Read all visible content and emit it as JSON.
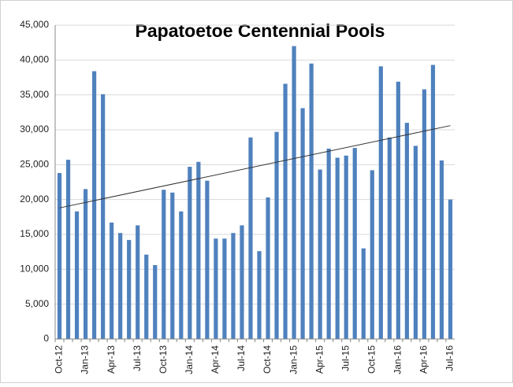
{
  "chart_data": {
    "type": "bar",
    "title": "Papatoetoe Centennial Pools",
    "categories": [
      "Oct-12",
      null,
      null,
      "Jan-13",
      null,
      null,
      "Apr-13",
      null,
      null,
      "Jul-13",
      null,
      null,
      "Oct-13",
      null,
      null,
      "Jan-14",
      null,
      null,
      "Apr-14",
      null,
      null,
      "Jul-14",
      null,
      null,
      "Oct-14",
      null,
      null,
      "Jan-15",
      null,
      null,
      "Apr-15",
      null,
      null,
      "Jul-15",
      null,
      null,
      "Oct-15",
      null,
      null,
      "Jan-16",
      null,
      null,
      "Apr-16",
      null,
      null,
      "Jul-16"
    ],
    "values": [
      23800,
      25700,
      18300,
      21500,
      38400,
      35100,
      16700,
      15200,
      14200,
      16300,
      12100,
      10600,
      21400,
      21000,
      18300,
      24700,
      25400,
      22700,
      14400,
      14400,
      15200,
      16300,
      28900,
      12600,
      20300,
      29700,
      36600,
      42000,
      33100,
      39500,
      24300,
      27300,
      26000,
      26300,
      27400,
      13000,
      24200,
      39100,
      28900,
      36900,
      31000,
      27700,
      35800,
      39300,
      25600,
      20000
    ],
    "color": "#4f81bd",
    "trend": [
      18800,
      30600
    ],
    "ylim": [
      0,
      45000
    ],
    "yticks": [
      0,
      {
        "value": 5000,
        "label": "5,000"
      },
      {
        "value": 10000,
        "label": "10,000"
      },
      {
        "value": 15000,
        "label": "15,000"
      },
      {
        "value": 20000,
        "label": "20,000"
      },
      {
        "value": 25000,
        "label": "25,000"
      },
      {
        "value": 30000,
        "label": "30,000"
      },
      {
        "value": 35000,
        "label": "35,000"
      },
      {
        "value": 40000,
        "label": "40,000"
      },
      {
        "value": 45000,
        "label": "45,000"
      }
    ],
    "grid": true
  }
}
